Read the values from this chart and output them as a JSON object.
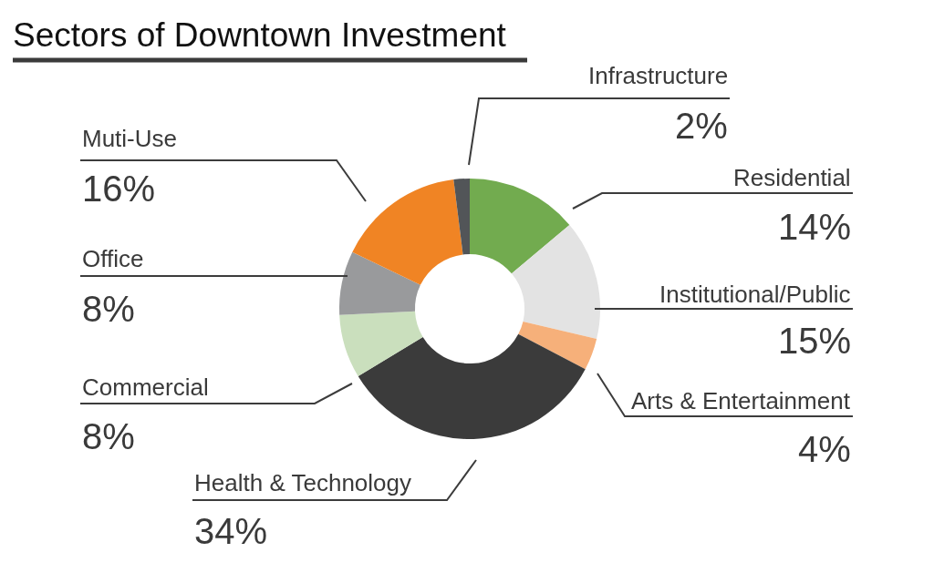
{
  "chart_data": {
    "type": "donut",
    "title": "Sectors of Downtown Investment",
    "categories": [
      "Residential",
      "Institutional/Public",
      "Arts & Entertainment",
      "Health & Technology",
      "Commercial",
      "Office",
      "Muti-Use",
      "Infrastructure"
    ],
    "values": [
      14,
      15,
      4,
      34,
      8,
      8,
      16,
      2
    ],
    "colors": [
      "#72ab4f",
      "#e3e3e3",
      "#f6b07a",
      "#3b3b3b",
      "#cadfbd",
      "#999a9c",
      "#f08424",
      "#525558"
    ],
    "value_labels": [
      "14%",
      "15%",
      "4%",
      "34%",
      "8%",
      "8%",
      "16%",
      "2%"
    ]
  }
}
